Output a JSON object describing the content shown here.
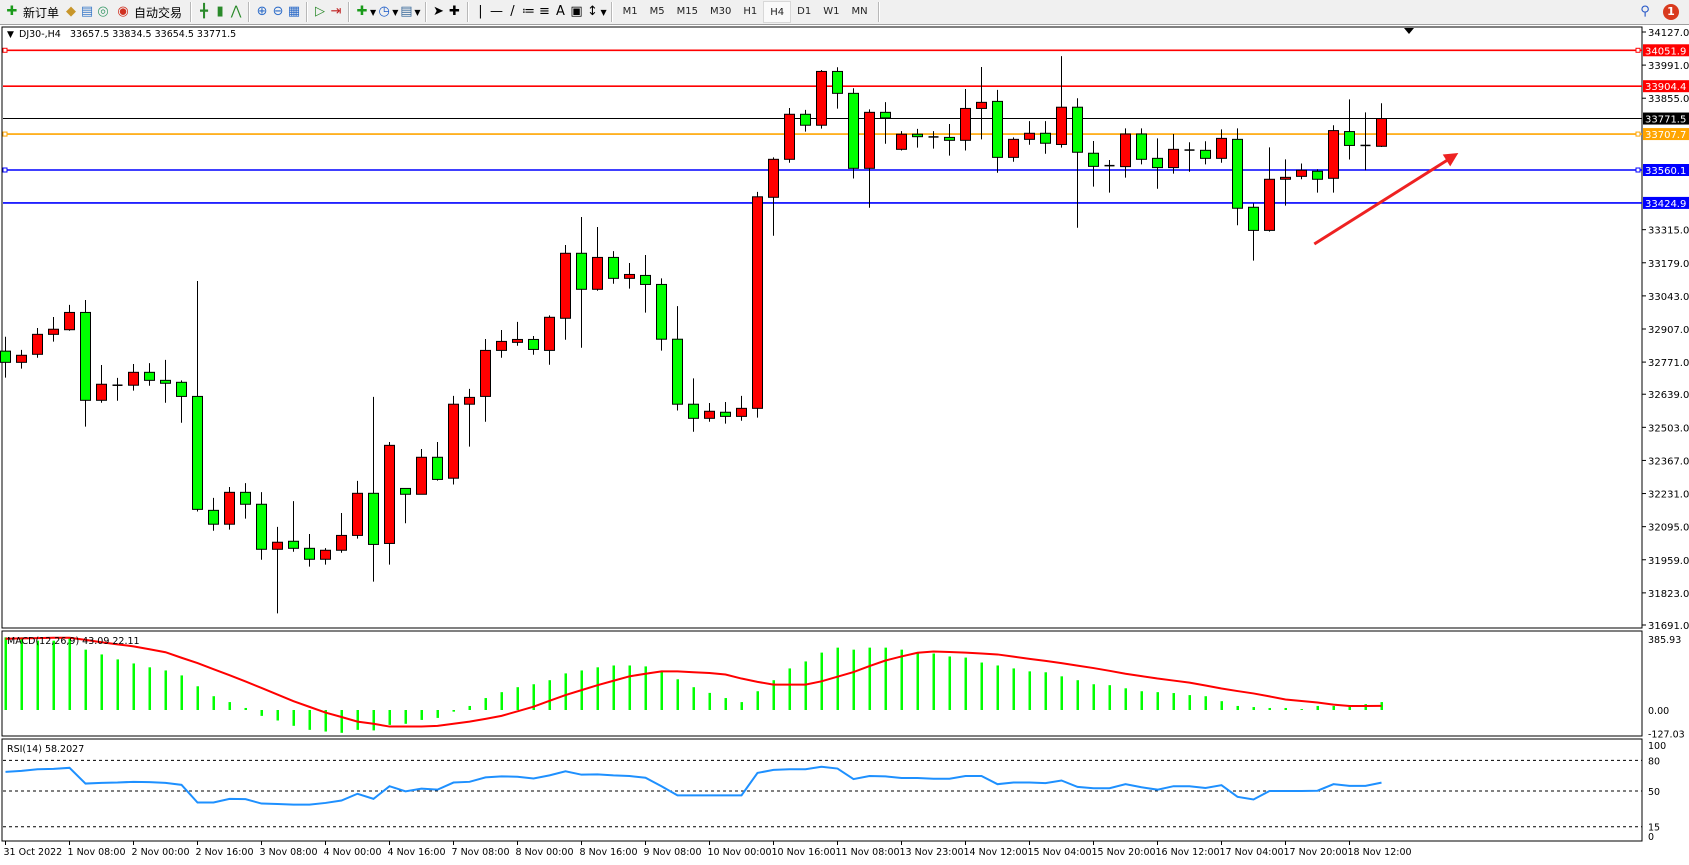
{
  "toolbar": {
    "new_order_label": "新订单",
    "auto_trading_label": "自动交易",
    "icons": [
      "new-order-icon",
      "market-watch-icon",
      "data-window-icon",
      "navigator-icon",
      "auto-trading-icon",
      "bar-chart-icon",
      "candlestick-icon",
      "line-chart-icon",
      "zoom-in-icon",
      "zoom-out-icon",
      "tile-windows-icon",
      "auto-scroll-icon",
      "chart-shift-icon",
      "indicators-icon",
      "periods-icon",
      "templates-icon",
      "cursor-icon",
      "crosshair-icon",
      "vertical-line-icon",
      "horizontal-line-icon",
      "trendline-icon",
      "fibonacci-icon",
      "fibo-fan-icon",
      "text-icon",
      "text-label-icon",
      "arrows-icon"
    ],
    "timeframes": [
      "M1",
      "M5",
      "M15",
      "M30",
      "H1",
      "H4",
      "D1",
      "W1",
      "MN"
    ],
    "active_timeframe": "H4",
    "notification_count": "1"
  },
  "chart_header": {
    "symbol": "DJ30-,H4",
    "ohlc_text": "33657.5 33834.5 33654.5 33771.5"
  },
  "colors": {
    "bull": "#ff0000",
    "bear": "#00ff00",
    "signal": "#ff0000",
    "rsi": "#1e90ff",
    "resistance": "#ff0000",
    "support": "#0000ff",
    "pivot": "#ffa500",
    "bid": "#000000"
  },
  "chart_data": {
    "type": "candlestick",
    "ylim": [
      31691.0,
      34127.0
    ],
    "price_ticks": [
      "34127.0",
      "33991.0",
      "33855.0",
      "33315.0",
      "33179.0",
      "33043.0",
      "32907.0",
      "32771.0",
      "32639.0",
      "32503.0",
      "32367.0",
      "32231.0",
      "32095.0",
      "31959.0",
      "31823.0",
      "31691.0"
    ],
    "time_labels": [
      "31 Oct 2022",
      "1 Nov 08:00",
      "2 Nov 00:00",
      "2 Nov 16:00",
      "3 Nov 08:00",
      "4 Nov 00:00",
      "4 Nov 16:00",
      "7 Nov 08:00",
      "8 Nov 00:00",
      "8 Nov 16:00",
      "9 Nov 08:00",
      "10 Nov 00:00",
      "10 Nov 16:00",
      "11 Nov 08:00",
      "13 Nov 23:00",
      "14 Nov 12:00",
      "15 Nov 04:00",
      "15 Nov 20:00",
      "16 Nov 12:00",
      "17 Nov 04:00",
      "17 Nov 20:00",
      "18 Nov 12:00"
    ],
    "candles_ohlc": [
      [
        32816,
        32875,
        32707,
        32770
      ],
      [
        32770,
        32821,
        32744,
        32799
      ],
      [
        32803,
        32911,
        32789,
        32885
      ],
      [
        32885,
        32956,
        32855,
        32906
      ],
      [
        32904,
        33006,
        32900,
        32975
      ],
      [
        32975,
        33026,
        32506,
        32614
      ],
      [
        32614,
        32759,
        32604,
        32680
      ],
      [
        32676,
        32706,
        32612,
        32676
      ],
      [
        32676,
        32763,
        32654,
        32729
      ],
      [
        32729,
        32767,
        32674,
        32696
      ],
      [
        32696,
        32780,
        32604,
        32684
      ],
      [
        32688,
        32696,
        32522,
        32630
      ],
      [
        32630,
        33104,
        32157,
        32166
      ],
      [
        32162,
        32213,
        32078,
        32105
      ],
      [
        32105,
        32258,
        32083,
        32236
      ],
      [
        32236,
        32274,
        32128,
        32187
      ],
      [
        32187,
        32237,
        31959,
        32002
      ],
      [
        32002,
        32094,
        31739,
        32031
      ],
      [
        32035,
        32200,
        31992,
        32006
      ],
      [
        32006,
        32065,
        31931,
        31961
      ],
      [
        31961,
        32007,
        31939,
        31998
      ],
      [
        31998,
        32151,
        31988,
        32059
      ],
      [
        32059,
        32283,
        32046,
        32232
      ],
      [
        32232,
        32628,
        31869,
        32022
      ],
      [
        32026,
        32443,
        31939,
        32429
      ],
      [
        32252,
        32252,
        32109,
        32228
      ],
      [
        32228,
        32414,
        32228,
        32380
      ],
      [
        32380,
        32443,
        32284,
        32289
      ],
      [
        32294,
        32632,
        32268,
        32598
      ],
      [
        32598,
        32661,
        32424,
        32626
      ],
      [
        32630,
        32866,
        32526,
        32819
      ],
      [
        32819,
        32903,
        32789,
        32856
      ],
      [
        32852,
        32936,
        32838,
        32864
      ],
      [
        32864,
        32878,
        32801,
        32823
      ],
      [
        32819,
        32963,
        32760,
        32955
      ],
      [
        32951,
        33252,
        32863,
        33218
      ],
      [
        33218,
        33367,
        32830,
        33070
      ],
      [
        33070,
        33326,
        33064,
        33201
      ],
      [
        33201,
        33227,
        33093,
        33115
      ],
      [
        33115,
        33178,
        33073,
        33131
      ],
      [
        33127,
        33211,
        32974,
        33090
      ],
      [
        33090,
        33115,
        32818,
        32865
      ],
      [
        32865,
        33001,
        32572,
        32598
      ],
      [
        32598,
        32704,
        32485,
        32540
      ],
      [
        32540,
        32603,
        32526,
        32569
      ],
      [
        32565,
        32607,
        32518,
        32548
      ],
      [
        32548,
        32632,
        32530,
        32581
      ],
      [
        32581,
        33470,
        32543,
        33450
      ],
      [
        33448,
        33612,
        33290,
        33604
      ],
      [
        33604,
        33815,
        33590,
        33789
      ],
      [
        33789,
        33807,
        33718,
        33744
      ],
      [
        33744,
        33971,
        33730,
        33965
      ],
      [
        33965,
        33982,
        33812,
        33875
      ],
      [
        33875,
        33896,
        33525,
        33567
      ],
      [
        33567,
        33809,
        33405,
        33797
      ],
      [
        33797,
        33839,
        33668,
        33774
      ],
      [
        33645,
        33720,
        33640,
        33707
      ],
      [
        33707,
        33729,
        33652,
        33697
      ],
      [
        33696,
        33720,
        33648,
        33696
      ],
      [
        33694,
        33749,
        33619,
        33682
      ],
      [
        33682,
        33893,
        33640,
        33813
      ],
      [
        33813,
        33983,
        33686,
        33838
      ],
      [
        33842,
        33889,
        33549,
        33612
      ],
      [
        33612,
        33694,
        33594,
        33686
      ],
      [
        33686,
        33761,
        33664,
        33711
      ],
      [
        33711,
        33761,
        33627,
        33670
      ],
      [
        33665,
        34028,
        33652,
        33818
      ],
      [
        33818,
        33855,
        33323,
        33633
      ],
      [
        33629,
        33679,
        33492,
        33575
      ],
      [
        33578,
        33601,
        33467,
        33578
      ],
      [
        33574,
        33731,
        33529,
        33708
      ],
      [
        33708,
        33731,
        33583,
        33604
      ],
      [
        33608,
        33690,
        33483,
        33570
      ],
      [
        33570,
        33708,
        33545,
        33645
      ],
      [
        33642,
        33674,
        33553,
        33642
      ],
      [
        33641,
        33678,
        33583,
        33608
      ],
      [
        33608,
        33727,
        33590,
        33690
      ],
      [
        33686,
        33731,
        33333,
        33403
      ],
      [
        33407,
        33423,
        33188,
        33312
      ],
      [
        33312,
        33653,
        33307,
        33522
      ],
      [
        33522,
        33604,
        33414,
        33530
      ],
      [
        33534,
        33587,
        33522,
        33559
      ],
      [
        33555,
        33563,
        33467,
        33522
      ],
      [
        33526,
        33744,
        33467,
        33722
      ],
      [
        33718,
        33850,
        33603,
        33661
      ],
      [
        33661,
        33797,
        33559,
        33661
      ],
      [
        33657.5,
        33834.5,
        33654.5,
        33771.5
      ]
    ],
    "horizontal_lines": [
      {
        "price": 34051.9,
        "label": "34051.9",
        "color": "#ff0000",
        "marker": true
      },
      {
        "price": 33904.4,
        "label": "33904.4",
        "color": "#ff0000",
        "marker": false
      },
      {
        "price": 33771.5,
        "label": "33771.5",
        "color": "#000000",
        "marker": false
      },
      {
        "price": 33707.7,
        "label": "33707.7",
        "color": "#ffa500",
        "marker": true
      },
      {
        "price": 33560.1,
        "label": "33560.1",
        "color": "#0000ff",
        "marker": true
      },
      {
        "price": 33424.9,
        "label": "33424.9",
        "color": "#0000ff",
        "marker": false
      }
    ],
    "arrow": {
      "from": {
        "bar": 81.8,
        "price": 33256
      },
      "to": {
        "bar": 90.8,
        "price": 33630
      },
      "color": "#ee2222"
    },
    "macd": {
      "label": "MACD(12,26,9) 43.09 22.11",
      "ylim": [
        -127.03,
        385.93
      ],
      "ticks": [
        "385.93",
        "0.00",
        "-127.03"
      ],
      "histogram": [
        395,
        395,
        377,
        377,
        390,
        328,
        302,
        275,
        253,
        232,
        215,
        188,
        129,
        75,
        43,
        11,
        -32,
        -57,
        -86,
        -108,
        -117,
        -124,
        -108,
        -111,
        -81,
        -75,
        -54,
        -43,
        -9,
        22,
        65,
        97,
        124,
        140,
        162,
        199,
        215,
        232,
        242,
        242,
        237,
        215,
        167,
        124,
        93,
        65,
        43,
        102,
        162,
        226,
        264,
        312,
        339,
        328,
        339,
        339,
        328,
        312,
        307,
        291,
        285,
        258,
        242,
        226,
        210,
        205,
        183,
        162,
        140,
        135,
        118,
        102,
        97,
        92,
        81,
        75,
        48,
        22,
        16,
        11,
        11,
        5,
        22,
        22,
        27,
        32,
        43.09
      ],
      "signal": [
        387,
        389,
        391,
        393,
        393,
        381,
        368,
        357,
        346,
        330,
        314,
        284,
        255,
        222,
        189,
        155,
        120,
        84,
        48,
        17,
        -14,
        -38,
        -63,
        -75,
        -90,
        -90,
        -90,
        -86,
        -75,
        -63,
        -48,
        -32,
        -7,
        18,
        50,
        81,
        108,
        135,
        159,
        183,
        197,
        210,
        210,
        205,
        201,
        193,
        171,
        153,
        138,
        138,
        138,
        156,
        181,
        206,
        239,
        269,
        291,
        311,
        318,
        315,
        312,
        307,
        302,
        290,
        278,
        267,
        255,
        241,
        228,
        213,
        197,
        184,
        171,
        160,
        149,
        133,
        117,
        103,
        90,
        74,
        57,
        49,
        41,
        29,
        22,
        22,
        22.11
      ]
    },
    "rsi": {
      "label": "RSI(14) 58.2027",
      "ticks": [
        "100",
        "80",
        "50",
        "15",
        "0"
      ],
      "levels": [
        80,
        50,
        15
      ],
      "values": [
        68.7,
        69.7,
        71.3,
        71.7,
        72.7,
        57.3,
        58,
        58.3,
        59,
        58.7,
        58,
        56,
        38.7,
        38.7,
        42.3,
        42,
        37.7,
        37.3,
        36.7,
        36.7,
        38.3,
        40.7,
        47.3,
        42.3,
        54.7,
        49.7,
        52.3,
        51.3,
        58.3,
        59,
        63.3,
        64.3,
        64,
        62.3,
        65.3,
        69.3,
        66,
        66.3,
        65.3,
        64.7,
        63,
        54.7,
        45.7,
        45.7,
        45.7,
        45.7,
        45.7,
        67.7,
        70.7,
        71.3,
        71.3,
        73.7,
        72,
        61.7,
        64.7,
        64.3,
        62.7,
        62.7,
        62,
        62,
        64.7,
        64.7,
        56.7,
        58.3,
        58.3,
        57.7,
        60.3,
        54,
        52.7,
        52.7,
        56.7,
        53.7,
        51.3,
        54.7,
        54.7,
        53,
        55.7,
        44.3,
        41.7,
        50,
        50,
        50,
        50.3,
        56.7,
        55,
        55,
        58.2
      ]
    }
  }
}
